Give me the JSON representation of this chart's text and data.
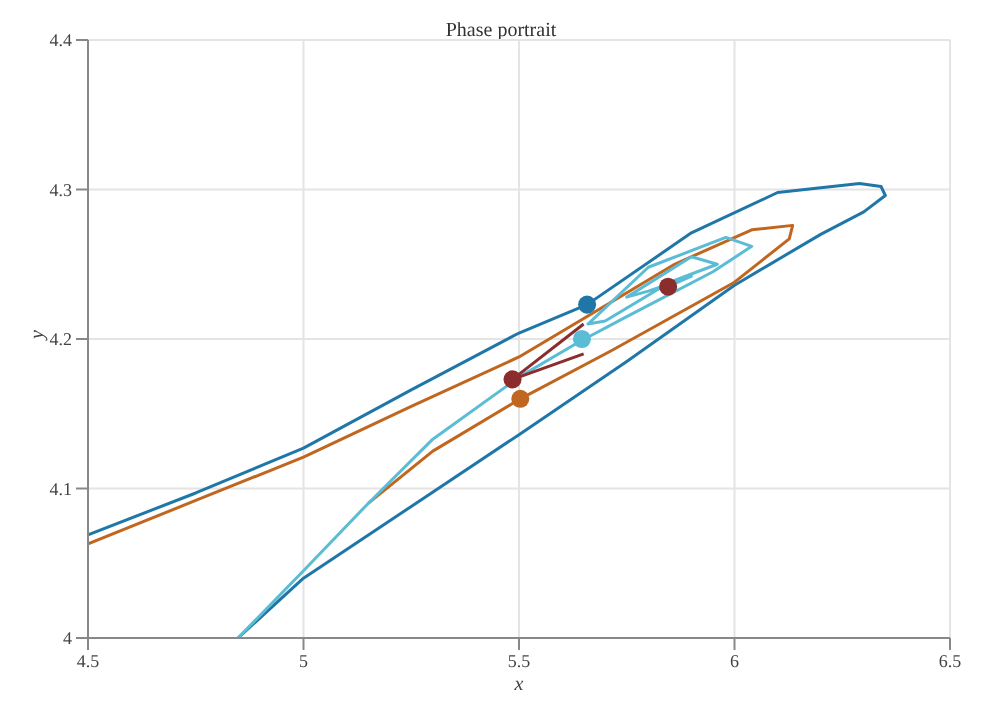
{
  "chart_data": {
    "type": "line",
    "title": "Phase portrait",
    "xlabel": "x",
    "ylabel": "y",
    "xlim": [
      4.5,
      6.5
    ],
    "xticks": [
      4.5,
      5,
      5.5,
      6,
      6.5
    ],
    "ylim": [
      4,
      4.4
    ],
    "yticks": [
      4,
      4.1,
      4.2,
      4.3,
      4.4
    ],
    "grid": true,
    "marker": "none",
    "line_style": "solid",
    "series": [
      {
        "color": "#1f77a8",
        "x": [
          4.848,
          5,
          5.25,
          5.5,
          5.75,
          6,
          6.2,
          6.3,
          6.35,
          6.34,
          6.29,
          6.1,
          5.9,
          5.658,
          5.5,
          5.25,
          5,
          4.75,
          4.5
        ],
        "values": [
          4,
          4.04,
          4.088,
          4.136,
          4.185,
          4.236,
          4.27,
          4.285,
          4.296,
          4.302,
          4.304,
          4.298,
          4.271,
          4.223,
          4.204,
          4.166,
          4.127,
          4.097,
          4.069
        ]
      },
      {
        "color": "#c0661e",
        "x": [
          5.15,
          5.3,
          5.503,
          5.713,
          6,
          6.127,
          6.135,
          6.04,
          5.861,
          5.658,
          5.5,
          5.25,
          5,
          4.75,
          4.5
        ],
        "values": [
          4.09,
          4.125,
          4.16,
          4.192,
          4.238,
          4.267,
          4.276,
          4.273,
          4.25,
          4.215,
          4.188,
          4.155,
          4.121,
          4.092,
          4.063
        ]
      },
      {
        "color": "#5bbcd6",
        "x": [
          4.848,
          5,
          5.15,
          5.3,
          5.503,
          5.639,
          5.75,
          5.95,
          6.04,
          5.98,
          5.8,
          5.66,
          5.7,
          5.85,
          5.96,
          5.9,
          5.75,
          5.8,
          5.9,
          5.846
        ],
        "values": [
          4,
          4.045,
          4.09,
          4.133,
          4.175,
          4.198,
          4.215,
          4.245,
          4.262,
          4.268,
          4.248,
          4.21,
          4.212,
          4.238,
          4.25,
          4.255,
          4.228,
          4.232,
          4.242,
          4.235
        ]
      },
      {
        "color": "#8b2d2d",
        "x": [
          5.485,
          5.65
        ],
        "values": [
          4.173,
          4.21
        ]
      },
      {
        "color": "#8b2d2d",
        "x": [
          5.485,
          5.65
        ],
        "values": [
          4.173,
          4.19
        ]
      },
      {
        "type": "scatter",
        "marker": "circle",
        "color": "#8b2d2d",
        "x": [
          5.485,
          5.846
        ],
        "values": [
          4.173,
          4.235
        ]
      },
      {
        "type": "scatter",
        "marker": "circle",
        "color": "#1f77a8",
        "x": [
          5.658
        ],
        "values": [
          4.223
        ]
      },
      {
        "type": "scatter",
        "marker": "circle",
        "color": "#c0661e",
        "x": [
          5.503
        ],
        "values": [
          4.16
        ]
      },
      {
        "type": "scatter",
        "marker": "circle",
        "color": "#5bbcd6",
        "x": [
          5.646
        ],
        "values": [
          4.2
        ]
      }
    ]
  }
}
